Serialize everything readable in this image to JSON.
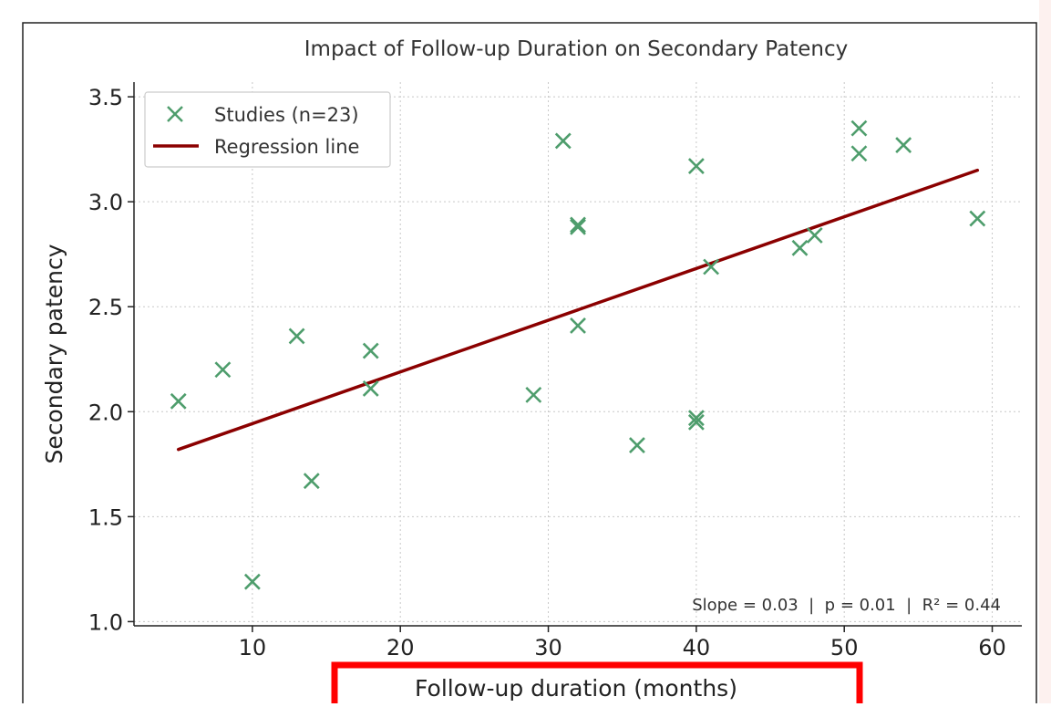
{
  "chart_data": {
    "type": "scatter",
    "title": "Impact of Follow-up Duration on Secondary Patency",
    "xlabel": "Follow-up duration (months)",
    "ylabel": "Secondary patency",
    "xlim": [
      2,
      62
    ],
    "ylim": [
      0.98,
      3.57
    ],
    "xticks": [
      10,
      20,
      30,
      40,
      50,
      60
    ],
    "yticks": [
      1.0,
      1.5,
      2.0,
      2.5,
      3.0,
      3.5
    ],
    "xtick_labels": [
      "10",
      "20",
      "30",
      "40",
      "50",
      "60"
    ],
    "ytick_labels": [
      "1.0",
      "1.5",
      "2.0",
      "2.5",
      "3.0",
      "3.5"
    ],
    "grid": true,
    "legend_position": "top-left",
    "series": [
      {
        "name": "Studies (n=23)",
        "marker": "x",
        "color": "#4e9d6c",
        "points": [
          {
            "x": 5,
            "y": 2.05
          },
          {
            "x": 8,
            "y": 2.2
          },
          {
            "x": 10,
            "y": 1.19
          },
          {
            "x": 13,
            "y": 2.36
          },
          {
            "x": 14,
            "y": 1.67
          },
          {
            "x": 18,
            "y": 2.29
          },
          {
            "x": 18,
            "y": 2.11
          },
          {
            "x": 29,
            "y": 2.08
          },
          {
            "x": 31,
            "y": 3.29
          },
          {
            "x": 32,
            "y": 2.89
          },
          {
            "x": 32,
            "y": 2.88
          },
          {
            "x": 32,
            "y": 2.41
          },
          {
            "x": 36,
            "y": 1.84
          },
          {
            "x": 40,
            "y": 3.17
          },
          {
            "x": 40,
            "y": 1.97
          },
          {
            "x": 40,
            "y": 1.95
          },
          {
            "x": 41,
            "y": 2.69
          },
          {
            "x": 47,
            "y": 2.78
          },
          {
            "x": 48,
            "y": 2.84
          },
          {
            "x": 51,
            "y": 3.35
          },
          {
            "x": 51,
            "y": 3.23
          },
          {
            "x": 54,
            "y": 3.27
          },
          {
            "x": 59,
            "y": 2.92
          }
        ]
      },
      {
        "name": "Regression line",
        "type": "line",
        "color": "#8b0000",
        "points": [
          {
            "x": 5,
            "y": 1.82
          },
          {
            "x": 59,
            "y": 3.15
          }
        ]
      }
    ],
    "annotation": "Slope = 0.03  |  p = 0.01  |  R² = 0.44"
  },
  "highlight_color": "#ff0000"
}
